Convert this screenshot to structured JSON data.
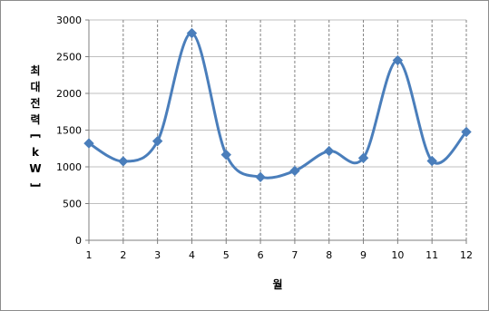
{
  "chart_data": {
    "type": "line",
    "title": "",
    "xlabel": "월",
    "ylabel": "최대전력[kW]",
    "categories": [
      "1",
      "2",
      "3",
      "4",
      "5",
      "6",
      "7",
      "8",
      "9",
      "10",
      "11",
      "12"
    ],
    "series": [
      {
        "values": [
          1320,
          1075,
          1350,
          2820,
          1165,
          860,
          945,
          1215,
          1120,
          2450,
          1080,
          1475
        ]
      }
    ],
    "ylim": [
      0,
      3000
    ],
    "yticks": [
      0,
      500,
      1000,
      1500,
      2000,
      2500,
      3000
    ],
    "grid": {
      "x": true,
      "y": true
    },
    "line_color": "#4a7ebb",
    "marker": "diamond",
    "smooth": true,
    "legend": "none"
  }
}
